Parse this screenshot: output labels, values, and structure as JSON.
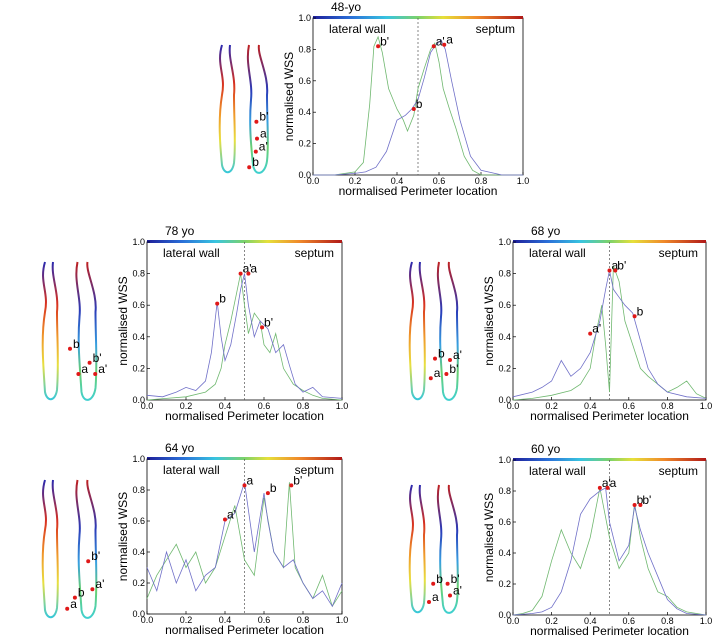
{
  "panels": [
    {
      "type": "line",
      "title": "48-yo",
      "xlabel": "normalised Perimeter location",
      "ylabel": "normalised WSS",
      "xlim": [
        0,
        1
      ],
      "ylim": [
        0,
        1
      ],
      "xticks": [
        "0.0",
        "0.2",
        "0.4",
        "0.6",
        "0.8",
        "1.0"
      ],
      "yticks": [
        "0.0",
        "0.2",
        "0.4",
        "0.6",
        "0.8",
        "1.0"
      ],
      "left_label": "lateral wall",
      "right_label": "septum",
      "series": [
        {
          "color": "#70b870",
          "x": [
            0.0,
            0.1,
            0.2,
            0.24,
            0.27,
            0.29,
            0.31,
            0.33,
            0.36,
            0.4,
            0.43,
            0.45,
            0.48,
            0.5,
            0.53,
            0.56,
            0.58,
            0.6,
            0.62,
            0.65,
            0.68,
            0.72,
            0.76,
            0.8,
            0.85,
            0.9,
            1.0
          ],
          "y": [
            0.0,
            0.0,
            0.02,
            0.08,
            0.45,
            0.82,
            0.88,
            0.78,
            0.55,
            0.42,
            0.35,
            0.28,
            0.38,
            0.55,
            0.68,
            0.8,
            0.84,
            0.72,
            0.55,
            0.42,
            0.3,
            0.12,
            0.03,
            0.0,
            0.0,
            0.0,
            0.0
          ]
        },
        {
          "color": "#7070c8",
          "x": [
            0.0,
            0.1,
            0.2,
            0.25,
            0.3,
            0.35,
            0.4,
            0.44,
            0.47,
            0.5,
            0.53,
            0.56,
            0.58,
            0.61,
            0.63,
            0.66,
            0.7,
            0.75,
            0.8,
            0.9,
            1.0
          ],
          "y": [
            0.0,
            0.0,
            0.01,
            0.02,
            0.05,
            0.15,
            0.35,
            0.38,
            0.42,
            0.48,
            0.62,
            0.78,
            0.82,
            0.86,
            0.8,
            0.6,
            0.35,
            0.12,
            0.03,
            0.0,
            0.0
          ]
        }
      ],
      "points": [
        {
          "label": "b'",
          "x": 0.31,
          "y": 0.82
        },
        {
          "label": "a'",
          "x": 0.575,
          "y": 0.82
        },
        {
          "label": "a",
          "x": 0.625,
          "y": 0.83
        },
        {
          "label": "b",
          "x": 0.48,
          "y": 0.42
        }
      ],
      "vessel_points": [
        {
          "label": "a",
          "x": 0.75,
          "y": 0.72
        },
        {
          "label": "b",
          "x": 0.62,
          "y": 0.94
        },
        {
          "label": "b'",
          "x": 0.74,
          "y": 0.59
        },
        {
          "label": "a'",
          "x": 0.73,
          "y": 0.82
        }
      ]
    },
    {
      "type": "line",
      "title": "78 yo",
      "xlabel": "normalised Perimeter location",
      "ylabel": "normalised WSS",
      "xlim": [
        0,
        1
      ],
      "ylim": [
        0,
        1
      ],
      "xticks": [
        "0.0",
        "0.2",
        "0.4",
        "0.6",
        "0.8",
        "1.0"
      ],
      "yticks": [
        "0.0",
        "0.2",
        "0.4",
        "0.6",
        "0.8",
        "1.0"
      ],
      "left_label": "lateral wall",
      "right_label": "septum",
      "series": [
        {
          "color": "#70b870",
          "x": [
            0.0,
            0.1,
            0.2,
            0.3,
            0.35,
            0.38,
            0.4,
            0.43,
            0.46,
            0.48,
            0.5,
            0.52,
            0.55,
            0.58,
            0.6,
            0.63,
            0.66,
            0.7,
            0.75,
            0.8,
            0.85,
            0.9,
            1.0
          ],
          "y": [
            0.0,
            0.01,
            0.02,
            0.05,
            0.1,
            0.2,
            0.35,
            0.5,
            0.68,
            0.8,
            0.6,
            0.42,
            0.55,
            0.5,
            0.35,
            0.3,
            0.42,
            0.2,
            0.1,
            0.06,
            0.03,
            0.01,
            0.0
          ]
        },
        {
          "color": "#7070c8",
          "x": [
            0.0,
            0.08,
            0.15,
            0.2,
            0.25,
            0.3,
            0.33,
            0.36,
            0.38,
            0.4,
            0.43,
            0.46,
            0.48,
            0.5,
            0.52,
            0.55,
            0.58,
            0.62,
            0.66,
            0.7,
            0.73,
            0.76,
            0.8,
            0.85,
            0.9,
            1.0
          ],
          "y": [
            0.03,
            0.02,
            0.05,
            0.08,
            0.06,
            0.12,
            0.3,
            0.62,
            0.4,
            0.25,
            0.35,
            0.55,
            0.7,
            0.8,
            0.6,
            0.4,
            0.5,
            0.45,
            0.3,
            0.35,
            0.22,
            0.1,
            0.05,
            0.08,
            0.02,
            0.01
          ]
        }
      ],
      "points": [
        {
          "label": "a'",
          "x": 0.48,
          "y": 0.8
        },
        {
          "label": "a",
          "x": 0.52,
          "y": 0.8
        },
        {
          "label": "b",
          "x": 0.36,
          "y": 0.61
        },
        {
          "label": "b'",
          "x": 0.59,
          "y": 0.46
        }
      ],
      "vessel_points": [
        {
          "label": "b",
          "x": 0.5,
          "y": 0.62
        },
        {
          "label": "a",
          "x": 0.62,
          "y": 0.8
        },
        {
          "label": "b'",
          "x": 0.78,
          "y": 0.72
        },
        {
          "label": "a'",
          "x": 0.86,
          "y": 0.8
        }
      ]
    },
    {
      "type": "line",
      "title": "68 yo",
      "xlabel": "normalised Perimeter location",
      "ylabel": "normalised WSS",
      "xlim": [
        0,
        1
      ],
      "ylim": [
        0,
        1
      ],
      "xticks": [
        "0.0",
        "0.2",
        "0.4",
        "0.6",
        "0.8",
        "1.0"
      ],
      "yticks": [
        "0.0",
        "0.2",
        "0.4",
        "0.6",
        "0.8",
        "1.0"
      ],
      "left_label": "lateral wall",
      "right_label": "septum",
      "series": [
        {
          "color": "#70b870",
          "x": [
            0.0,
            0.1,
            0.2,
            0.3,
            0.35,
            0.4,
            0.43,
            0.46,
            0.48,
            0.5,
            0.52,
            0.55,
            0.58,
            0.62,
            0.66,
            0.7,
            0.75,
            0.8,
            0.85,
            0.9,
            0.95,
            1.0
          ],
          "y": [
            0.0,
            0.01,
            0.03,
            0.06,
            0.1,
            0.2,
            0.42,
            0.6,
            0.35,
            0.05,
            0.85,
            0.75,
            0.5,
            0.35,
            0.2,
            0.15,
            0.1,
            0.05,
            0.08,
            0.12,
            0.04,
            0.01
          ]
        },
        {
          "color": "#7070c8",
          "x": [
            0.0,
            0.1,
            0.15,
            0.2,
            0.25,
            0.3,
            0.35,
            0.4,
            0.45,
            0.48,
            0.5,
            0.52,
            0.55,
            0.58,
            0.62,
            0.65,
            0.7,
            0.75,
            0.8,
            0.9,
            1.0
          ],
          "y": [
            0.02,
            0.05,
            0.08,
            0.12,
            0.25,
            0.15,
            0.2,
            0.3,
            0.5,
            0.7,
            0.82,
            0.7,
            0.65,
            0.6,
            0.55,
            0.42,
            0.2,
            0.1,
            0.05,
            0.02,
            0.01
          ]
        }
      ],
      "points": [
        {
          "label": "a",
          "x": 0.5,
          "y": 0.82
        },
        {
          "label": "b'",
          "x": 0.53,
          "y": 0.82
        },
        {
          "label": "a'",
          "x": 0.4,
          "y": 0.42
        },
        {
          "label": "b",
          "x": 0.63,
          "y": 0.53
        }
      ],
      "vessel_points": [
        {
          "label": "b",
          "x": 0.55,
          "y": 0.69
        },
        {
          "label": "a",
          "x": 0.48,
          "y": 0.83
        },
        {
          "label": "a'",
          "x": 0.8,
          "y": 0.7
        },
        {
          "label": "b'",
          "x": 0.74,
          "y": 0.8
        }
      ]
    },
    {
      "type": "line",
      "title": "64 yo",
      "xlabel": "normalised Perimeter location",
      "ylabel": "normalised WSS",
      "xlim": [
        0,
        1
      ],
      "ylim": [
        0,
        1
      ],
      "xticks": [
        "0.0",
        "0.2",
        "0.4",
        "0.6",
        "0.8",
        "1.0"
      ],
      "yticks": [
        "0.0",
        "0.2",
        "0.4",
        "0.6",
        "0.8",
        "1.0"
      ],
      "left_label": "lateral wall",
      "right_label": "septum",
      "series": [
        {
          "color": "#70b870",
          "x": [
            0.0,
            0.05,
            0.1,
            0.15,
            0.2,
            0.25,
            0.3,
            0.35,
            0.4,
            0.45,
            0.5,
            0.55,
            0.6,
            0.65,
            0.7,
            0.73,
            0.76,
            0.8,
            0.85,
            0.9,
            0.95,
            1.0
          ],
          "y": [
            0.1,
            0.25,
            0.35,
            0.45,
            0.3,
            0.4,
            0.2,
            0.3,
            0.5,
            0.7,
            0.35,
            0.25,
            0.75,
            0.4,
            0.3,
            0.85,
            0.3,
            0.2,
            0.1,
            0.25,
            0.05,
            0.15
          ]
        },
        {
          "color": "#7070c8",
          "x": [
            0.0,
            0.05,
            0.1,
            0.15,
            0.2,
            0.25,
            0.3,
            0.35,
            0.4,
            0.45,
            0.5,
            0.55,
            0.6,
            0.62,
            0.65,
            0.7,
            0.75,
            0.8,
            0.85,
            0.9,
            0.95,
            1.0
          ],
          "y": [
            0.3,
            0.15,
            0.4,
            0.2,
            0.35,
            0.15,
            0.25,
            0.3,
            0.6,
            0.65,
            0.85,
            0.4,
            0.78,
            0.6,
            0.4,
            0.3,
            0.35,
            0.2,
            0.1,
            0.15,
            0.05,
            0.2
          ]
        }
      ],
      "points": [
        {
          "label": "a'",
          "x": 0.4,
          "y": 0.61
        },
        {
          "label": "a",
          "x": 0.5,
          "y": 0.83
        },
        {
          "label": "b",
          "x": 0.62,
          "y": 0.78
        },
        {
          "label": "b'",
          "x": 0.74,
          "y": 0.83
        }
      ],
      "vessel_points": [
        {
          "label": "a",
          "x": 0.46,
          "y": 0.92
        },
        {
          "label": "b",
          "x": 0.57,
          "y": 0.84
        },
        {
          "label": "b'",
          "x": 0.76,
          "y": 0.58
        },
        {
          "label": "a'",
          "x": 0.82,
          "y": 0.78
        }
      ]
    },
    {
      "type": "line",
      "title": "60 yo",
      "xlabel": "normalised Perimeter location",
      "ylabel": "normalised WSS",
      "xlim": [
        0,
        1
      ],
      "ylim": [
        0,
        1
      ],
      "xticks": [
        "0.0",
        "0.2",
        "0.4",
        "0.6",
        "0.8",
        "1.0"
      ],
      "yticks": [
        "0.0",
        "0.2",
        "0.4",
        "0.6",
        "0.8",
        "1.0"
      ],
      "left_label": "lateral wall",
      "right_label": "septum",
      "series": [
        {
          "color": "#70b870",
          "x": [
            0.0,
            0.05,
            0.1,
            0.15,
            0.2,
            0.25,
            0.3,
            0.35,
            0.4,
            0.45,
            0.5,
            0.55,
            0.6,
            0.63,
            0.66,
            0.7,
            0.75,
            0.8,
            0.85,
            0.9,
            1.0
          ],
          "y": [
            0.0,
            0.01,
            0.03,
            0.12,
            0.35,
            0.55,
            0.4,
            0.3,
            0.5,
            0.82,
            0.5,
            0.3,
            0.4,
            0.72,
            0.5,
            0.3,
            0.15,
            0.12,
            0.05,
            0.02,
            0.0
          ]
        },
        {
          "color": "#7070c8",
          "x": [
            0.0,
            0.1,
            0.15,
            0.2,
            0.25,
            0.3,
            0.35,
            0.4,
            0.45,
            0.48,
            0.5,
            0.55,
            0.6,
            0.63,
            0.66,
            0.7,
            0.75,
            0.8,
            0.85,
            0.9,
            1.0
          ],
          "y": [
            0.0,
            0.01,
            0.02,
            0.05,
            0.15,
            0.35,
            0.65,
            0.75,
            0.8,
            0.82,
            0.6,
            0.35,
            0.45,
            0.7,
            0.55,
            0.4,
            0.25,
            0.1,
            0.04,
            0.01,
            0.0
          ]
        }
      ],
      "points": [
        {
          "label": "a'",
          "x": 0.45,
          "y": 0.82
        },
        {
          "label": "a",
          "x": 0.49,
          "y": 0.82
        },
        {
          "label": "b",
          "x": 0.63,
          "y": 0.71
        },
        {
          "label": "b'",
          "x": 0.66,
          "y": 0.71
        }
      ],
      "vessel_points": [
        {
          "label": "b",
          "x": 0.52,
          "y": 0.76
        },
        {
          "label": "a",
          "x": 0.45,
          "y": 0.9
        },
        {
          "label": "b'",
          "x": 0.76,
          "y": 0.76
        },
        {
          "label": "a'",
          "x": 0.8,
          "y": 0.85
        }
      ]
    }
  ]
}
